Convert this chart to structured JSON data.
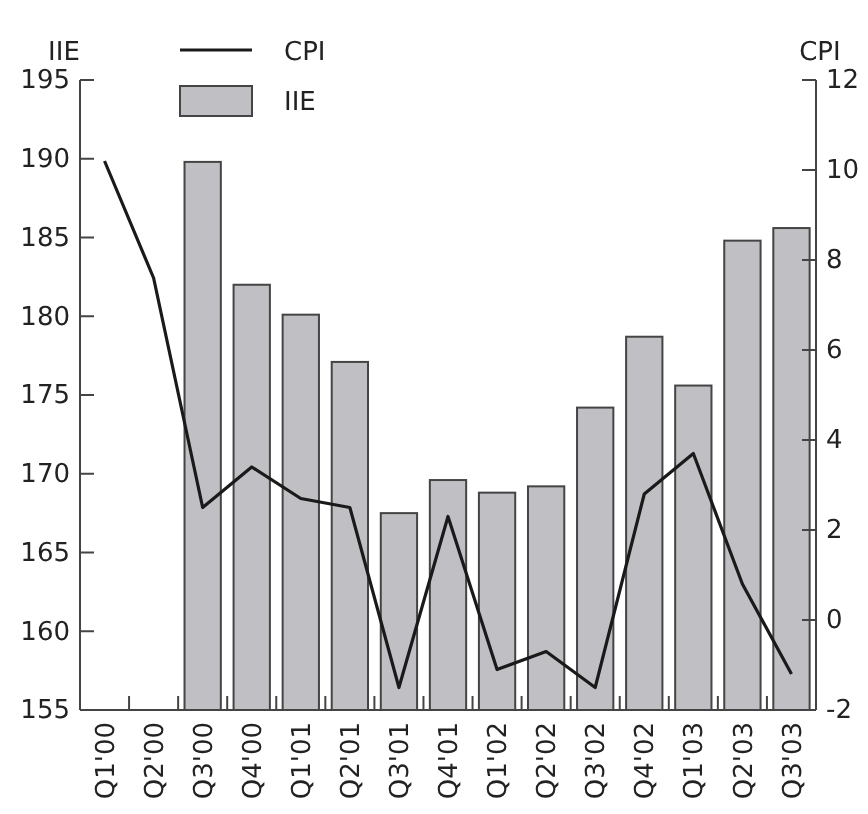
{
  "chart_data": {
    "type": "bar",
    "categories": [
      "Q1'00",
      "Q2'00",
      "Q3'00",
      "Q4'00",
      "Q1'01",
      "Q2'01",
      "Q3'01",
      "Q4'01",
      "Q1'02",
      "Q2'02",
      "Q3'02",
      "Q4'02",
      "Q1'03",
      "Q2'03",
      "Q3'03"
    ],
    "series": [
      {
        "name": "IIE",
        "color": "#c0c0c4",
        "values": [
          null,
          null,
          189.8,
          182.0,
          180.1,
          177.1,
          167.5,
          169.6,
          168.8,
          169.2,
          174.2,
          178.7,
          175.6,
          184.8,
          185.6
        ]
      },
      {
        "name": "CPI",
        "type": "line",
        "axis": "y2",
        "color": "#1a1a1a",
        "values": [
          10.2,
          7.6,
          2.5,
          3.4,
          2.7,
          2.5,
          -1.5,
          2.3,
          -1.1,
          -0.7,
          -1.5,
          2.8,
          3.7,
          0.8,
          -1.2
        ]
      }
    ],
    "ylabel": "IIE",
    "y2label": "CPI",
    "ylim": [
      155,
      195
    ],
    "yticks": [
      155,
      160,
      165,
      170,
      175,
      180,
      185,
      190,
      195
    ],
    "y2lim": [
      -2,
      12
    ],
    "y2ticks": [
      -2,
      0,
      2,
      4,
      6,
      8,
      10,
      12
    ],
    "grid": false,
    "legend": "top left",
    "marker": "none",
    "line_style": "solid"
  }
}
